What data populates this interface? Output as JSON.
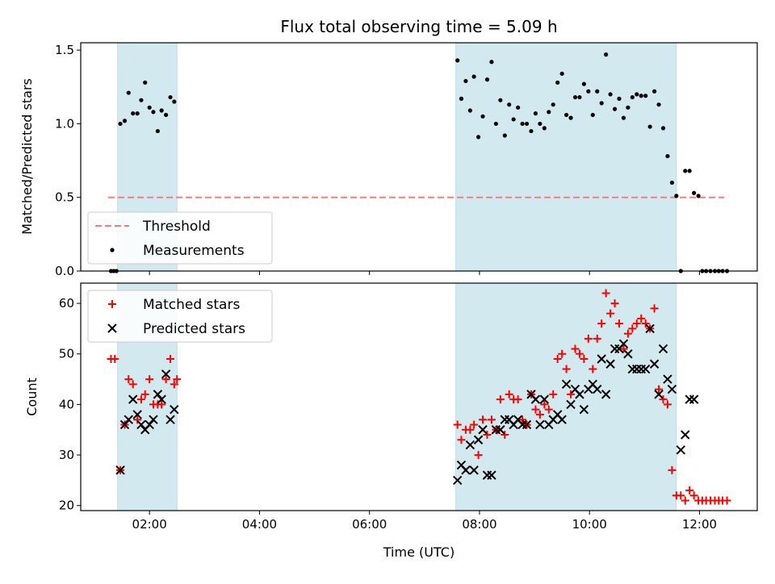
{
  "chart_data": {
    "title": "Flux total observing time = 5.09 h",
    "xlabel": "Time (UTC)",
    "x_unit": "hours UTC",
    "xlim": [
      0.75,
      13.05
    ],
    "x_ticks": [
      {
        "value": 2,
        "label": "02:00"
      },
      {
        "value": 4,
        "label": "04:00"
      },
      {
        "value": 6,
        "label": "06:00"
      },
      {
        "value": 8,
        "label": "08:00"
      },
      {
        "value": 10,
        "label": "10:00"
      },
      {
        "value": 12,
        "label": "12:00"
      }
    ],
    "observing_windows": [
      [
        1.42,
        2.5
      ],
      [
        7.57,
        11.58
      ]
    ],
    "window_color": "#d3e9f0",
    "panels": [
      {
        "type": "scatter",
        "ylabel": "Matched/Predicted stars",
        "ylim": [
          0,
          1.55
        ],
        "yticks": [
          {
            "value": 0,
            "label": "0.0"
          },
          {
            "value": 0.5,
            "label": "0.5"
          },
          {
            "value": 1.0,
            "label": "1.0"
          },
          {
            "value": 1.5,
            "label": "1.5"
          }
        ],
        "legend": {
          "position": "lower-left"
        },
        "threshold": {
          "name": "Threshold",
          "y": 0.5,
          "x_range": [
            1.25,
            12.45
          ],
          "color": "#f08080"
        },
        "series": [
          {
            "name": "Measurements",
            "color": "#000000",
            "marker": "dot",
            "points": [
              [
                1.3,
                0.0
              ],
              [
                1.35,
                0.0
              ],
              [
                1.4,
                0.0
              ],
              [
                1.47,
                1.0
              ],
              [
                1.55,
                1.02
              ],
              [
                1.62,
                1.21
              ],
              [
                1.7,
                1.07
              ],
              [
                1.78,
                1.07
              ],
              [
                1.85,
                1.16
              ],
              [
                1.92,
                1.28
              ],
              [
                2.0,
                1.11
              ],
              [
                2.07,
                1.08
              ],
              [
                2.15,
                0.95
              ],
              [
                2.22,
                1.09
              ],
              [
                2.3,
                1.06
              ],
              [
                2.38,
                1.18
              ],
              [
                2.45,
                1.15
              ],
              [
                7.6,
                1.43
              ],
              [
                7.67,
                1.17
              ],
              [
                7.75,
                1.29
              ],
              [
                7.83,
                1.09
              ],
              [
                7.9,
                1.32
              ],
              [
                7.98,
                0.91
              ],
              [
                8.06,
                1.05
              ],
              [
                8.14,
                1.3
              ],
              [
                8.22,
                1.42
              ],
              [
                8.3,
                1.0
              ],
              [
                8.38,
                1.16
              ],
              [
                8.46,
                0.92
              ],
              [
                8.54,
                1.13
              ],
              [
                8.62,
                1.03
              ],
              [
                8.7,
                1.11
              ],
              [
                8.78,
                1.0
              ],
              [
                8.86,
                1.0
              ],
              [
                8.94,
                0.95
              ],
              [
                9.02,
                1.07
              ],
              [
                9.1,
                1.0
              ],
              [
                9.18,
                0.97
              ],
              [
                9.26,
                1.08
              ],
              [
                9.34,
                1.13
              ],
              [
                9.42,
                1.28
              ],
              [
                9.5,
                1.34
              ],
              [
                9.58,
                1.06
              ],
              [
                9.66,
                1.04
              ],
              [
                9.74,
                1.18
              ],
              [
                9.82,
                1.18
              ],
              [
                9.9,
                1.27
              ],
              [
                9.98,
                1.22
              ],
              [
                10.06,
                1.06
              ],
              [
                10.14,
                1.22
              ],
              [
                10.22,
                1.14
              ],
              [
                10.3,
                1.47
              ],
              [
                10.38,
                1.2
              ],
              [
                10.46,
                1.1
              ],
              [
                10.54,
                1.17
              ],
              [
                10.62,
                1.04
              ],
              [
                10.7,
                1.11
              ],
              [
                10.78,
                1.18
              ],
              [
                10.86,
                1.2
              ],
              [
                10.94,
                1.19
              ],
              [
                11.02,
                1.19
              ],
              [
                11.1,
                0.98
              ],
              [
                11.18,
                1.22
              ],
              [
                11.26,
                1.13
              ],
              [
                11.34,
                0.97
              ],
              [
                11.42,
                0.78
              ],
              [
                11.5,
                0.6
              ],
              [
                11.58,
                0.51
              ],
              [
                11.66,
                0.0
              ],
              [
                11.74,
                0.68
              ],
              [
                11.82,
                0.68
              ],
              [
                11.9,
                0.53
              ],
              [
                11.98,
                0.51
              ],
              [
                12.05,
                0.0
              ],
              [
                12.12,
                0.0
              ],
              [
                12.2,
                0.0
              ],
              [
                12.28,
                0.0
              ],
              [
                12.35,
                0.0
              ],
              [
                12.42,
                0.0
              ],
              [
                12.5,
                0.0
              ]
            ]
          }
        ]
      },
      {
        "type": "scatter",
        "ylabel": "Count",
        "ylim": [
          19,
          64
        ],
        "yticks": [
          {
            "value": 20,
            "label": "20"
          },
          {
            "value": 30,
            "label": "30"
          },
          {
            "value": 40,
            "label": "40"
          },
          {
            "value": 50,
            "label": "50"
          },
          {
            "value": 60,
            "label": "60"
          }
        ],
        "legend": {
          "position": "upper-left"
        },
        "series": [
          {
            "name": "Matched stars",
            "color": "#ff0000",
            "marker": "plus",
            "points": [
              [
                1.3,
                49
              ],
              [
                1.37,
                49
              ],
              [
                1.47,
                27
              ],
              [
                1.55,
                36
              ],
              [
                1.62,
                45
              ],
              [
                1.7,
                44
              ],
              [
                1.78,
                37
              ],
              [
                1.85,
                41
              ],
              [
                1.92,
                42
              ],
              [
                2.0,
                45
              ],
              [
                2.07,
                40
              ],
              [
                2.15,
                40
              ],
              [
                2.22,
                40
              ],
              [
                2.3,
                45
              ],
              [
                2.38,
                49
              ],
              [
                2.45,
                44
              ],
              [
                2.5,
                45
              ],
              [
                7.6,
                36
              ],
              [
                7.67,
                33
              ],
              [
                7.75,
                35
              ],
              [
                7.83,
                35
              ],
              [
                7.9,
                36
              ],
              [
                7.98,
                30
              ],
              [
                8.06,
                37
              ],
              [
                8.14,
                34
              ],
              [
                8.22,
                37
              ],
              [
                8.3,
                35
              ],
              [
                8.38,
                41
              ],
              [
                8.46,
                34
              ],
              [
                8.54,
                42
              ],
              [
                8.62,
                41
              ],
              [
                8.7,
                41
              ],
              [
                8.78,
                37
              ],
              [
                8.86,
                36
              ],
              [
                8.94,
                42
              ],
              [
                9.02,
                39
              ],
              [
                9.1,
                38
              ],
              [
                9.18,
                40
              ],
              [
                9.26,
                39
              ],
              [
                9.34,
                42
              ],
              [
                9.42,
                49
              ],
              [
                9.5,
                50
              ],
              [
                9.58,
                47
              ],
              [
                9.66,
                42
              ],
              [
                9.74,
                51
              ],
              [
                9.82,
                50
              ],
              [
                9.9,
                49
              ],
              [
                9.98,
                53
              ],
              [
                10.06,
                47
              ],
              [
                10.14,
                53
              ],
              [
                10.22,
                56
              ],
              [
                10.3,
                62
              ],
              [
                10.38,
                58
              ],
              [
                10.46,
                60
              ],
              [
                10.54,
                56
              ],
              [
                10.62,
                51
              ],
              [
                10.7,
                54
              ],
              [
                10.78,
                55
              ],
              [
                10.86,
                56
              ],
              [
                10.94,
                57
              ],
              [
                11.02,
                56
              ],
              [
                11.1,
                55
              ],
              [
                11.18,
                59
              ],
              [
                11.26,
                43
              ],
              [
                11.34,
                41
              ],
              [
                11.42,
                40
              ],
              [
                11.5,
                27
              ],
              [
                11.58,
                22
              ],
              [
                11.66,
                22
              ],
              [
                11.74,
                21
              ],
              [
                11.82,
                23
              ],
              [
                11.9,
                22
              ],
              [
                11.98,
                21
              ],
              [
                12.05,
                21
              ],
              [
                12.12,
                21
              ],
              [
                12.2,
                21
              ],
              [
                12.28,
                21
              ],
              [
                12.35,
                21
              ],
              [
                12.42,
                21
              ],
              [
                12.5,
                21
              ]
            ]
          },
          {
            "name": "Predicted stars",
            "color": "#000000",
            "marker": "cross",
            "points": [
              [
                1.47,
                27
              ],
              [
                1.55,
                36
              ],
              [
                1.62,
                37
              ],
              [
                1.7,
                41
              ],
              [
                1.78,
                38
              ],
              [
                1.85,
                36
              ],
              [
                1.92,
                35
              ],
              [
                2.0,
                36
              ],
              [
                2.07,
                37
              ],
              [
                2.15,
                42
              ],
              [
                2.22,
                41
              ],
              [
                2.3,
                46
              ],
              [
                2.38,
                37
              ],
              [
                2.45,
                39
              ],
              [
                7.6,
                25
              ],
              [
                7.67,
                28
              ],
              [
                7.75,
                27
              ],
              [
                7.83,
                32
              ],
              [
                7.9,
                27
              ],
              [
                7.98,
                33
              ],
              [
                8.06,
                35
              ],
              [
                8.14,
                26
              ],
              [
                8.22,
                26
              ],
              [
                8.3,
                35
              ],
              [
                8.38,
                35
              ],
              [
                8.46,
                37
              ],
              [
                8.54,
                37
              ],
              [
                8.62,
                36
              ],
              [
                8.7,
                37
              ],
              [
                8.78,
                36
              ],
              [
                8.86,
                36
              ],
              [
                8.94,
                42
              ],
              [
                9.02,
                41
              ],
              [
                9.1,
                36
              ],
              [
                9.18,
                41
              ],
              [
                9.26,
                36
              ],
              [
                9.34,
                37
              ],
              [
                9.42,
                38
              ],
              [
                9.5,
                37
              ],
              [
                9.58,
                44
              ],
              [
                9.66,
                40
              ],
              [
                9.74,
                43
              ],
              [
                9.82,
                42
              ],
              [
                9.9,
                39
              ],
              [
                9.98,
                43
              ],
              [
                10.06,
                44
              ],
              [
                10.14,
                43
              ],
              [
                10.22,
                49
              ],
              [
                10.3,
                42
              ],
              [
                10.38,
                48
              ],
              [
                10.46,
                51
              ],
              [
                10.54,
                51
              ],
              [
                10.62,
                52
              ],
              [
                10.7,
                50
              ],
              [
                10.78,
                47
              ],
              [
                10.86,
                47
              ],
              [
                10.94,
                47
              ],
              [
                11.02,
                47
              ],
              [
                11.1,
                55
              ],
              [
                11.18,
                48
              ],
              [
                11.26,
                42
              ],
              [
                11.34,
                51
              ],
              [
                11.42,
                45
              ],
              [
                11.5,
                43
              ],
              [
                11.66,
                31
              ],
              [
                11.74,
                34
              ],
              [
                11.82,
                41
              ],
              [
                11.9,
                41
              ]
            ]
          }
        ]
      }
    ]
  }
}
